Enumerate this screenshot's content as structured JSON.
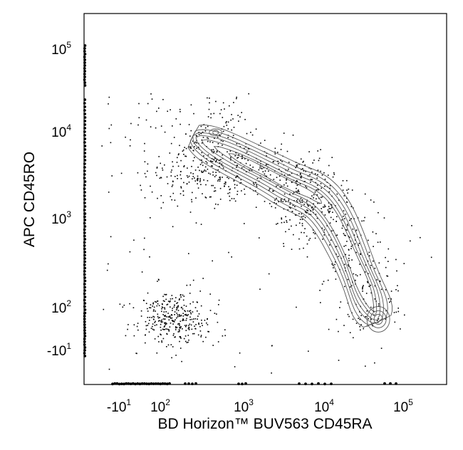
{
  "chart_data": {
    "type": "contour",
    "xlabel": "BD Horizon™ BUV563 CD45RA",
    "ylabel": "APC CD45RO",
    "x_scale": "biexponential",
    "y_scale": "biexponential",
    "x_ticks": [
      {
        "base": "-10",
        "exp": "1",
        "value": -10
      },
      {
        "base": "10",
        "exp": "2",
        "value": 100
      },
      {
        "base": "10",
        "exp": "3",
        "value": 1000
      },
      {
        "base": "10",
        "exp": "4",
        "value": 10000
      },
      {
        "base": "10",
        "exp": "5",
        "value": 100000
      }
    ],
    "y_ticks": [
      {
        "base": "-10",
        "exp": "1",
        "value": -10
      },
      {
        "base": "10",
        "exp": "2",
        "value": 100
      },
      {
        "base": "10",
        "exp": "3",
        "value": 1000
      },
      {
        "base": "10",
        "exp": "4",
        "value": 10000
      },
      {
        "base": "10",
        "exp": "5",
        "value": 100000
      }
    ],
    "grid": false,
    "legend": "none",
    "populations": [
      {
        "id": "CD45RO-high",
        "center": {
          "x": 250,
          "y": 10000
        }
      },
      {
        "id": "transitional",
        "center": {
          "x": 3000,
          "y": 3000
        }
      },
      {
        "id": "CD45RA-high",
        "center": {
          "x": 45000,
          "y": 60
        }
      },
      {
        "id": "double-negative",
        "center": {
          "x": 150,
          "y": 70
        }
      }
    ],
    "colors": {
      "contour": "#555555",
      "dots": "#000000",
      "frame": "#000000"
    }
  }
}
